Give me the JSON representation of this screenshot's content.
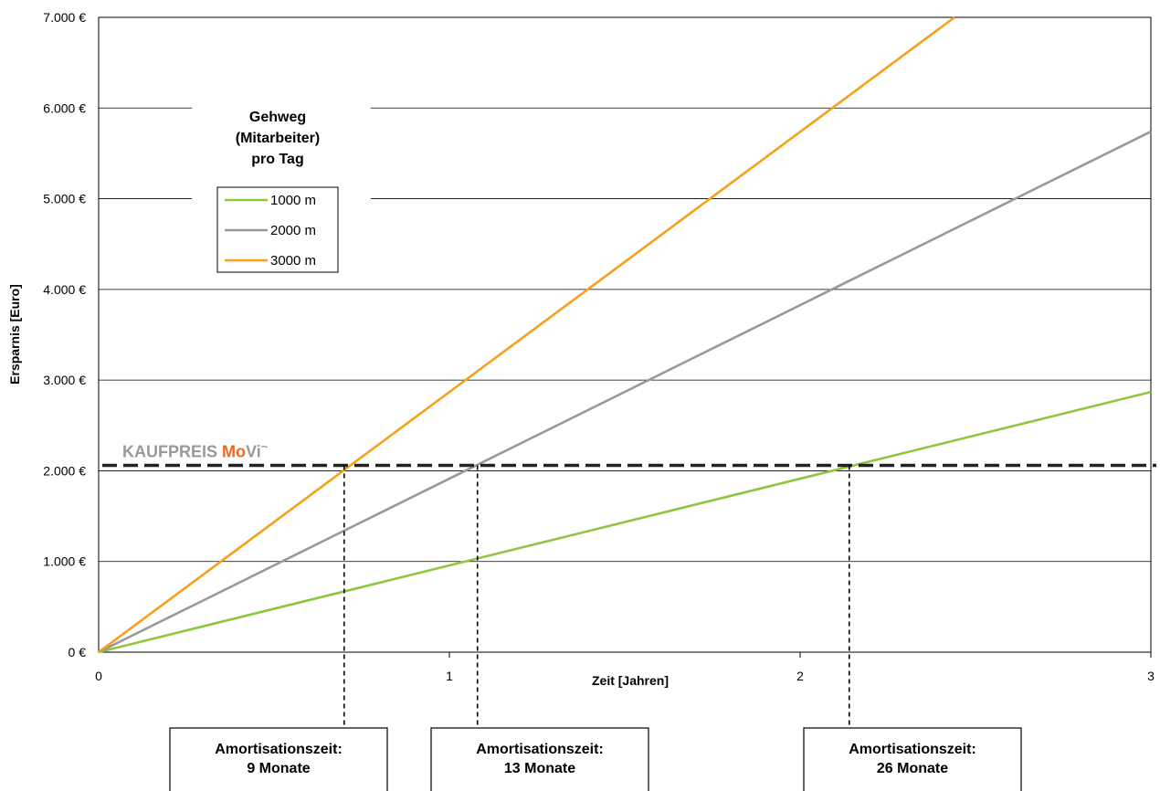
{
  "chart_data": {
    "type": "line",
    "xlabel": "Zeit [Jahren]",
    "ylabel": "Ersparnis [Euro]",
    "xlim": [
      0,
      3
    ],
    "ylim": [
      0,
      7000
    ],
    "x_ticks": [
      {
        "value": 0,
        "label": "0"
      },
      {
        "value": 1,
        "label": "1"
      },
      {
        "value": 2,
        "label": "2"
      },
      {
        "value": 3,
        "label": "3"
      }
    ],
    "y_ticks": [
      {
        "value": 0,
        "label": "0 €"
      },
      {
        "value": 1000,
        "label": "1.000 €"
      },
      {
        "value": 2000,
        "label": "2.000 €"
      },
      {
        "value": 3000,
        "label": "3.000 €"
      },
      {
        "value": 4000,
        "label": "4.000 €"
      },
      {
        "value": 5000,
        "label": "5.000 €"
      },
      {
        "value": 6000,
        "label": "6.000 €"
      },
      {
        "value": 7000,
        "label": "7.000 €"
      }
    ],
    "grid": "horizontal",
    "legend": {
      "title_lines": [
        "Gehweg",
        "(Mitarbeiter)",
        "pro Tag"
      ],
      "placement": "top-left"
    },
    "series": [
      {
        "name": "1000 m",
        "color": "#8dc63f",
        "x": [
          0,
          3
        ],
        "values": [
          0,
          2870
        ]
      },
      {
        "name": "2000 m",
        "color": "#999999",
        "x": [
          0,
          3
        ],
        "values": [
          0,
          5740
        ]
      },
      {
        "name": "3000 m",
        "color": "#f7a11a",
        "x": [
          0,
          2.44
        ],
        "values": [
          0,
          7000
        ]
      }
    ],
    "reference_line": {
      "value": 2060,
      "label_parts": [
        {
          "text": "KAUFPREIS ",
          "color": "#999999"
        },
        {
          "text": "Mo",
          "color": "#f26522"
        },
        {
          "text": "Vi",
          "color": "#999999"
        },
        {
          "text": "~",
          "color": "#999999"
        }
      ]
    },
    "annotations": [
      {
        "x": 0.7,
        "title": "Amortisationszeit:",
        "value": "9 Monate"
      },
      {
        "x": 1.08,
        "title": "Amortisationszeit:",
        "value": "13 Monate"
      },
      {
        "x": 2.14,
        "title": "Amortisationszeit:",
        "value": "26 Monate"
      }
    ]
  }
}
